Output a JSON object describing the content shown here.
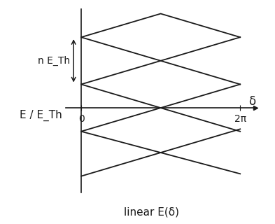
{
  "chart_data": {
    "type": "line",
    "y_label": "E / E_Th",
    "x_label": "δ",
    "caption": "linear E(δ)",
    "annotation": {
      "text": "n E_Th",
      "y": [
        0.5,
        1.5
      ]
    },
    "color": "#1a1a1a",
    "line_style": "solid",
    "tick_labels": "x",
    "xlim": [
      -0.6,
      6.9
    ],
    "ylim": [
      -1.8,
      2.1
    ],
    "xticks": [
      0,
      {
        "value": 6.2832,
        "label": "2π"
      }
    ],
    "series": [
      {
        "x": [
          0,
          3.1416,
          6.2832
        ],
        "values": [
          1.5,
          2.0,
          1.5
        ]
      },
      {
        "x": [
          0,
          6.2832
        ],
        "values": [
          1.5,
          0.5
        ]
      },
      {
        "x": [
          0,
          6.2832
        ],
        "values": [
          0.5,
          1.5
        ]
      },
      {
        "x": [
          0,
          6.2832
        ],
        "values": [
          0.5,
          -0.5
        ]
      },
      {
        "x": [
          0,
          6.2832
        ],
        "values": [
          -0.5,
          0.5
        ]
      },
      {
        "x": [
          0,
          6.2832
        ],
        "values": [
          -0.5,
          -1.4
        ]
      },
      {
        "x": [
          0,
          6.2832
        ],
        "values": [
          -1.45,
          -0.45
        ]
      }
    ]
  }
}
